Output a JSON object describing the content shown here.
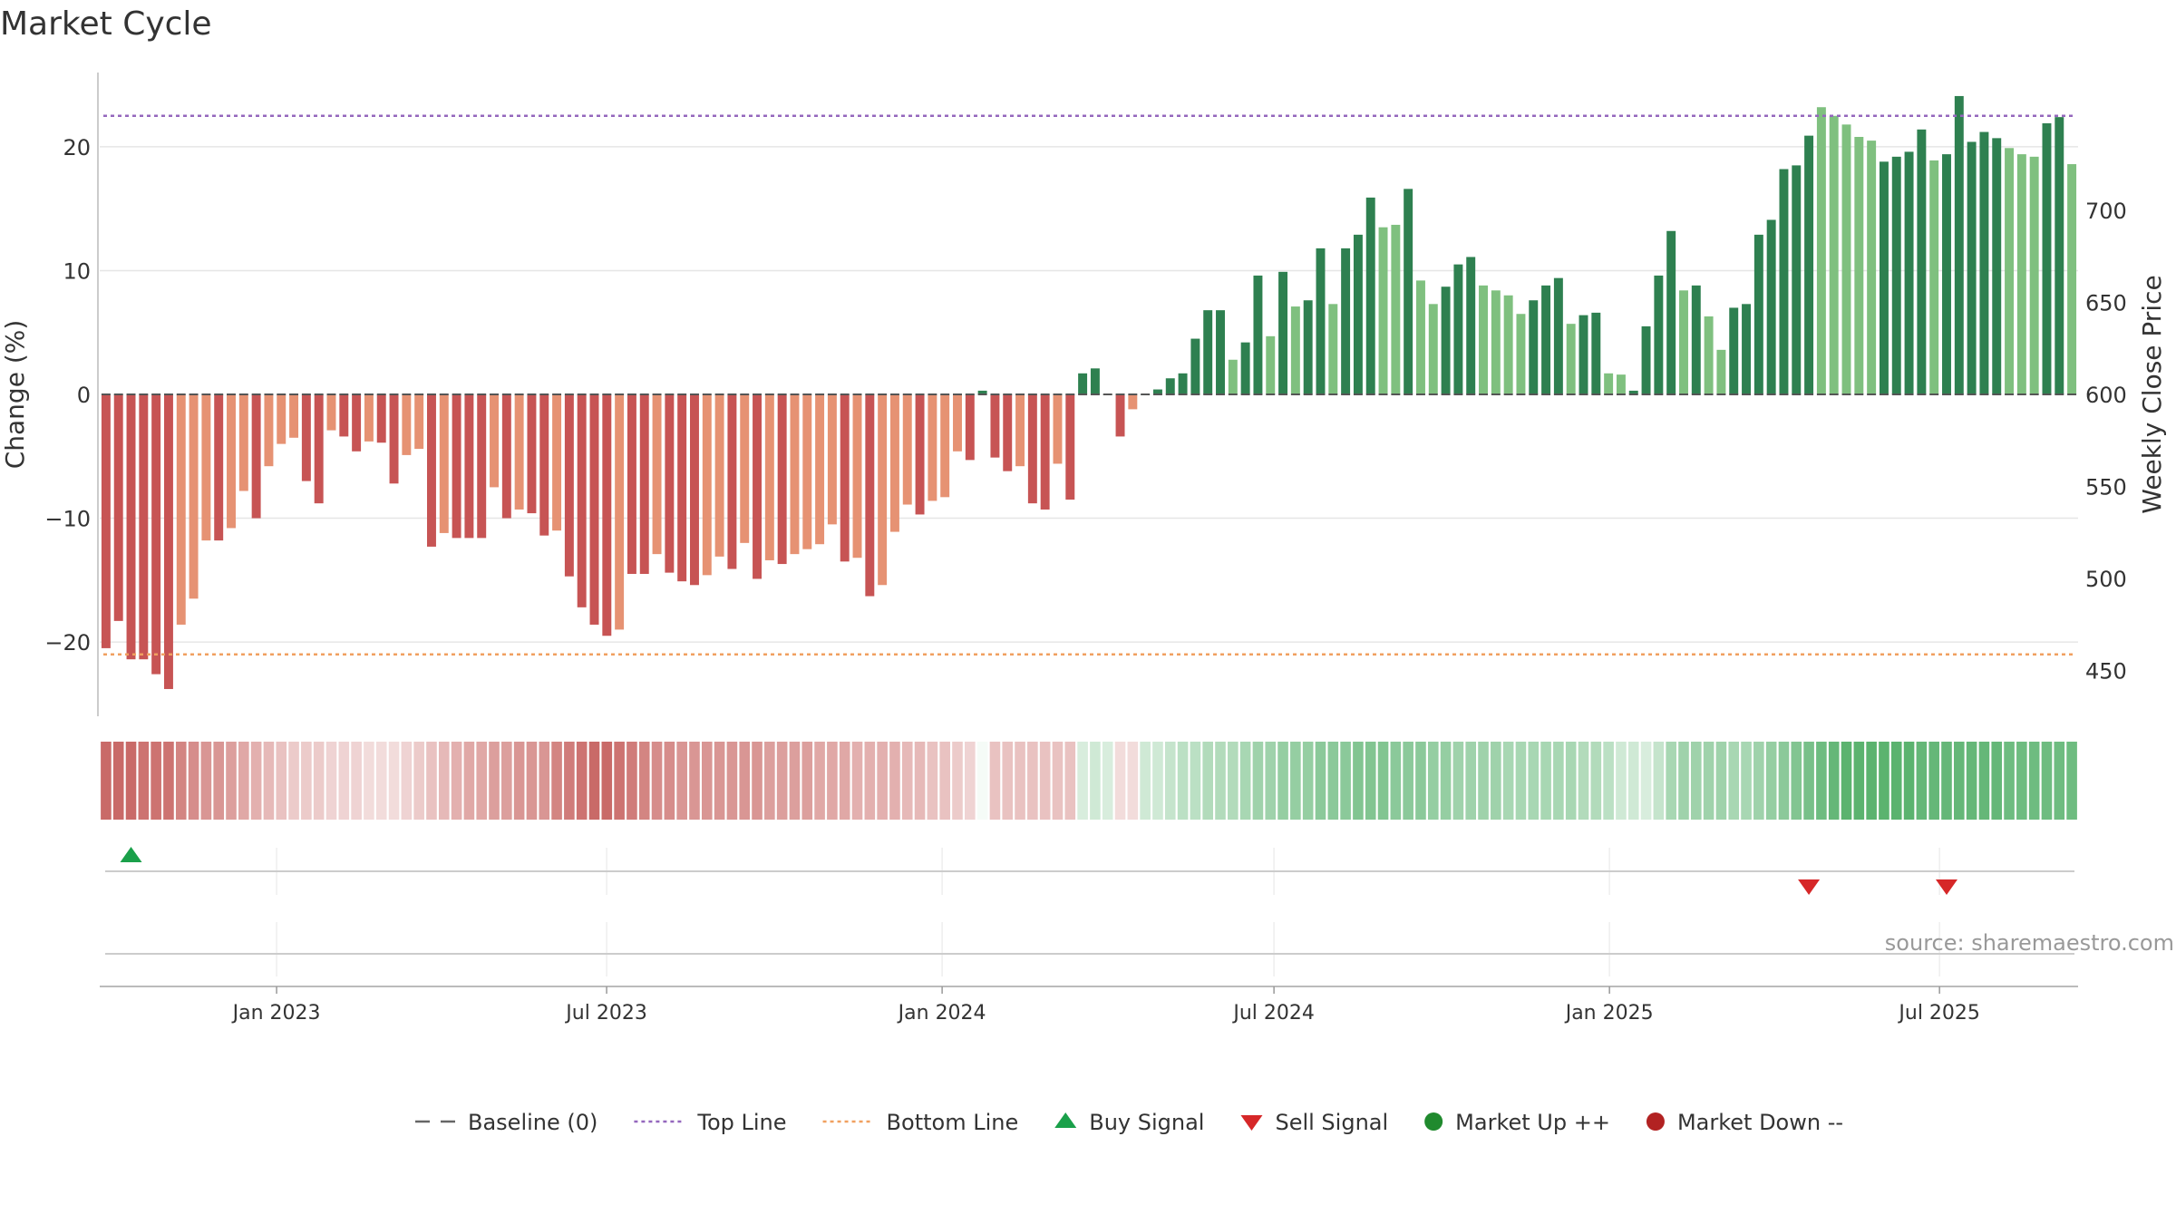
{
  "chart_data": {
    "type": "bar",
    "title": "Market Cycle",
    "ylabel": "Change (%)",
    "y2label": "Weekly Close Price",
    "ylim": [
      -26,
      26
    ],
    "y2lim": [
      425,
      775
    ],
    "yticks": [
      -20,
      -10,
      0,
      10,
      20
    ],
    "ytick_labels": [
      "−20",
      "−10",
      "0",
      "10",
      "20"
    ],
    "y2ticks": [
      450,
      500,
      550,
      600,
      650,
      700
    ],
    "top_line": 22.5,
    "bottom_line": -21,
    "baseline": 0,
    "x_start": "2022-09-26",
    "x_end": "2025-09-15",
    "xtick_dates": [
      "2023-01-01",
      "2023-07-01",
      "2024-01-01",
      "2024-07-01",
      "2025-01-01",
      "2025-07-01"
    ],
    "xtick_labels": [
      "Jan 2023",
      "Jul 2023",
      "Jan 2024",
      "Jul 2024",
      "Jan 2025",
      "Jul 2025"
    ],
    "change_values": [
      -20.5,
      -18.3,
      -21.4,
      -21.4,
      -22.6,
      -23.8,
      -18.6,
      -16.5,
      -11.8,
      -11.8,
      -10.8,
      -7.8,
      -10,
      -5.8,
      -4,
      -3.5,
      -7,
      -8.8,
      -2.9,
      -3.4,
      -4.6,
      -3.8,
      -3.9,
      -7.2,
      -4.9,
      -4.4,
      -12.3,
      -11.2,
      -11.6,
      -11.6,
      -11.6,
      -7.5,
      -10,
      -9.3,
      -9.6,
      -11.4,
      -11,
      -14.7,
      -17.2,
      -18.6,
      -19.5,
      -19,
      -14.5,
      -14.5,
      -12.9,
      -14.4,
      -15.1,
      -15.4,
      -14.6,
      -13.1,
      -14.1,
      -12,
      -14.9,
      -13.4,
      -13.7,
      -12.9,
      -12.5,
      -12.1,
      -10.5,
      -13.5,
      -13.2,
      -16.3,
      -15.4,
      -11.1,
      -8.9,
      -9.7,
      -8.6,
      -8.3,
      -4.6,
      -5.3,
      0.3,
      -5.1,
      -6.2,
      -5.8,
      -8.8,
      -9.3,
      -5.6,
      -8.5,
      1.7,
      2.1,
      0,
      -3.4,
      -1.2,
      0,
      0.4,
      1.3,
      1.7,
      4.5,
      6.8,
      6.8,
      2.8,
      4.2,
      9.6,
      4.7,
      9.9,
      7.1,
      7.6,
      11.8,
      7.3,
      11.8,
      12.9,
      15.9,
      13.5,
      13.7,
      16.6,
      9.2,
      7.3,
      8.7,
      10.5,
      11.1,
      8.8,
      8.4,
      8,
      6.5,
      7.6,
      8.8,
      9.4,
      5.7,
      6.4,
      6.6,
      1.7,
      1.6,
      0.3,
      5.5,
      9.6,
      13.2,
      8.4,
      8.8,
      6.3,
      3.6,
      7,
      7.3,
      12.9,
      14.1,
      18.2,
      18.5,
      20.9,
      23.2,
      22.5,
      21.8,
      20.8,
      20.5,
      18.8,
      19.2,
      19.6,
      21.4,
      18.9,
      19.4,
      24.1,
      20.4,
      21.2,
      20.7,
      19.9,
      19.4,
      19.2,
      21.9,
      22.4,
      18.6
    ],
    "bar_tones": [
      1,
      1,
      1,
      1,
      1,
      1,
      0,
      0,
      0,
      1,
      0,
      0,
      1,
      0,
      0,
      0,
      1,
      1,
      0,
      1,
      1,
      0,
      1,
      1,
      0,
      0,
      1,
      0,
      1,
      1,
      1,
      0,
      1,
      0,
      1,
      1,
      0,
      1,
      1,
      1,
      1,
      0,
      1,
      1,
      0,
      1,
      1,
      1,
      0,
      0,
      1,
      0,
      1,
      0,
      1,
      0,
      0,
      0,
      0,
      1,
      0,
      1,
      0,
      0,
      0,
      1,
      0,
      0,
      0,
      1,
      1,
      1,
      1,
      0,
      1,
      1,
      0,
      1,
      1,
      1,
      1,
      1,
      0,
      1,
      1,
      1,
      1,
      1,
      1,
      1,
      0,
      1,
      1,
      0,
      1,
      0,
      1,
      1,
      0,
      1,
      1,
      1,
      0,
      0,
      1,
      0,
      0,
      1,
      1,
      1,
      0,
      0,
      0,
      0,
      1,
      1,
      1,
      0,
      1,
      1,
      0,
      0,
      1,
      1,
      1,
      1,
      0,
      1,
      0,
      0,
      1,
      1,
      1,
      1,
      1,
      1,
      1,
      0,
      0,
      0,
      0,
      0,
      1,
      1,
      1,
      1,
      0,
      1,
      1,
      1,
      1,
      1,
      0,
      0,
      0,
      1,
      1,
      0
    ],
    "heat_strength": [
      0.85,
      0.85,
      0.85,
      0.8,
      0.8,
      0.8,
      0.7,
      0.65,
      0.6,
      0.6,
      0.55,
      0.5,
      0.45,
      0.4,
      0.35,
      0.3,
      0.3,
      0.3,
      0.25,
      0.25,
      0.25,
      0.2,
      0.2,
      0.2,
      0.25,
      0.3,
      0.35,
      0.4,
      0.45,
      0.5,
      0.5,
      0.55,
      0.55,
      0.6,
      0.6,
      0.6,
      0.7,
      0.75,
      0.8,
      0.85,
      0.85,
      0.8,
      0.75,
      0.7,
      0.65,
      0.65,
      0.6,
      0.6,
      0.6,
      0.6,
      0.6,
      0.6,
      0.6,
      0.55,
      0.55,
      0.55,
      0.55,
      0.5,
      0.5,
      0.5,
      0.45,
      0.45,
      0.45,
      0.45,
      0.4,
      0.4,
      0.35,
      0.35,
      0.3,
      0.25,
      0.05,
      0.35,
      0.35,
      0.35,
      0.35,
      0.35,
      0.35,
      0.35,
      0.2,
      0.25,
      0.2,
      0.2,
      0.2,
      0.25,
      0.25,
      0.3,
      0.35,
      0.35,
      0.4,
      0.4,
      0.4,
      0.45,
      0.5,
      0.5,
      0.55,
      0.55,
      0.55,
      0.6,
      0.6,
      0.6,
      0.65,
      0.65,
      0.65,
      0.6,
      0.6,
      0.6,
      0.55,
      0.55,
      0.5,
      0.5,
      0.5,
      0.5,
      0.45,
      0.45,
      0.45,
      0.45,
      0.45,
      0.45,
      0.4,
      0.4,
      0.35,
      0.25,
      0.25,
      0.2,
      0.3,
      0.45,
      0.5,
      0.5,
      0.5,
      0.5,
      0.45,
      0.45,
      0.5,
      0.55,
      0.6,
      0.65,
      0.7,
      0.75,
      0.8,
      0.85,
      0.85,
      0.85,
      0.85,
      0.85,
      0.85,
      0.8,
      0.8,
      0.8,
      0.8,
      0.8,
      0.8,
      0.8,
      0.75,
      0.75,
      0.75,
      0.75,
      0.75,
      0.75,
      0.75,
      0.75
    ],
    "buy_signals": [
      2
    ],
    "sell_signals": [
      136,
      147
    ],
    "source": "source: sharemaestro.com",
    "legend": [
      {
        "label": "Baseline (0)",
        "symbol": "dash",
        "color": "#666666"
      },
      {
        "label": "Top Line",
        "symbol": "dot",
        "color": "#9467bd"
      },
      {
        "label": "Bottom Line",
        "symbol": "dot",
        "color": "#f0a060"
      },
      {
        "label": "Buy Signal",
        "symbol": "triangle-up",
        "color": "#1aa04a"
      },
      {
        "label": "Sell Signal",
        "symbol": "triangle-down",
        "color": "#d62728"
      },
      {
        "label": "Market Up ++",
        "symbol": "circle",
        "color": "#208a2e"
      },
      {
        "label": "Market Down --",
        "symbol": "circle",
        "color": "#b22222"
      }
    ],
    "colors": {
      "neg_dark": "#c75454",
      "neg_light": "#e69273",
      "pos_dark": "#2e8050",
      "pos_light": "#7fc07f",
      "heat_red": "#c0504d",
      "heat_green": "#3ea556",
      "top_line": "#9467bd",
      "bottom_line": "#f0a060"
    }
  }
}
